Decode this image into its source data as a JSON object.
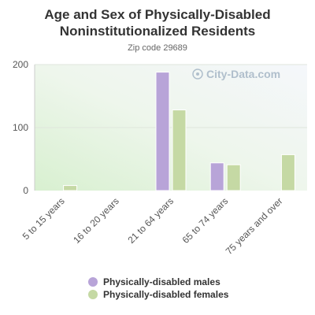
{
  "chart_data": {
    "type": "bar",
    "title": "Age and Sex of Physically-Disabled Noninstitutionalized Residents",
    "subtitle": "Zip code 29689",
    "categories": [
      "5 to 15 years",
      "16 to 20 years",
      "21 to 64 years",
      "65 to 74 years",
      "75 years and over"
    ],
    "series": [
      {
        "name": "Physically-disabled males",
        "values": [
          0,
          0,
          188,
          44,
          0
        ],
        "color": "#b8a4d8"
      },
      {
        "name": "Physically-disabled females",
        "values": [
          8,
          0,
          128,
          41,
          57
        ],
        "color": "#c5d9a4"
      }
    ],
    "yticks": [
      0,
      100,
      200
    ],
    "ylim": [
      0,
      200
    ],
    "grid": true,
    "legend_position": "bottom",
    "watermark": "City-Data.com"
  }
}
